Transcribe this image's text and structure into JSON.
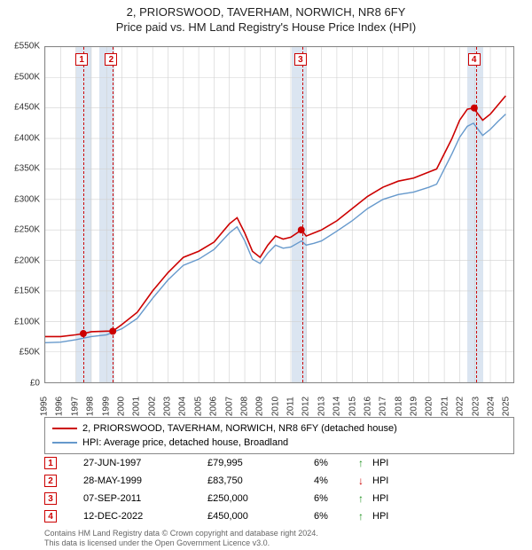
{
  "title_main": "2, PRIORSWOOD, TAVERHAM, NORWICH, NR8 6FY",
  "title_sub": "Price paid vs. HM Land Registry's House Price Index (HPI)",
  "title_fontsize": 13,
  "chart": {
    "xlim": [
      1995,
      2025.5
    ],
    "ylim": [
      0,
      550
    ],
    "xticks": [
      1995,
      1996,
      1997,
      1998,
      1999,
      2000,
      2001,
      2002,
      2003,
      2004,
      2005,
      2006,
      2007,
      2008,
      2009,
      2010,
      2011,
      2012,
      2013,
      2014,
      2015,
      2016,
      2017,
      2018,
      2019,
      2020,
      2021,
      2022,
      2023,
      2024,
      2025
    ],
    "yticks": [
      0,
      50,
      100,
      150,
      200,
      250,
      300,
      350,
      400,
      450,
      500,
      550
    ],
    "ytick_labels": [
      "£0",
      "£50K",
      "£100K",
      "£150K",
      "£200K",
      "£250K",
      "£300K",
      "£350K",
      "£400K",
      "£450K",
      "£500K",
      "£550K"
    ],
    "grid_color": "#d0d0d0",
    "border_color": "#888888",
    "background_color": "#ffffff",
    "axis_label_fontsize": 10,
    "axis_label_color": "#333333",
    "recession_bands": [
      {
        "start": 1997.0,
        "end": 1998.0
      },
      {
        "start": 1998.5,
        "end": 1999.5
      },
      {
        "start": 2011.0,
        "end": 2012.0
      },
      {
        "start": 2022.4,
        "end": 2023.4
      }
    ],
    "recession_color": "#dbe5f1",
    "series_property": {
      "color": "#cc0000",
      "width": 1.6,
      "points": [
        [
          1995.0,
          75
        ],
        [
          1996.0,
          75
        ],
        [
          1997.0,
          78
        ],
        [
          1997.5,
          80
        ],
        [
          1998.0,
          83
        ],
        [
          1999.0,
          84
        ],
        [
          1999.4,
          84
        ],
        [
          2000.0,
          95
        ],
        [
          2001.0,
          115
        ],
        [
          2002.0,
          150
        ],
        [
          2003.0,
          180
        ],
        [
          2004.0,
          205
        ],
        [
          2005.0,
          215
        ],
        [
          2006.0,
          230
        ],
        [
          2007.0,
          260
        ],
        [
          2007.5,
          270
        ],
        [
          2008.0,
          245
        ],
        [
          2008.5,
          215
        ],
        [
          2009.0,
          205
        ],
        [
          2009.5,
          225
        ],
        [
          2010.0,
          240
        ],
        [
          2010.5,
          235
        ],
        [
          2011.0,
          238
        ],
        [
          2011.7,
          250
        ],
        [
          2012.0,
          240
        ],
        [
          2012.5,
          245
        ],
        [
          2013.0,
          250
        ],
        [
          2014.0,
          265
        ],
        [
          2015.0,
          285
        ],
        [
          2016.0,
          305
        ],
        [
          2017.0,
          320
        ],
        [
          2018.0,
          330
        ],
        [
          2019.0,
          335
        ],
        [
          2020.0,
          345
        ],
        [
          2020.5,
          350
        ],
        [
          2021.0,
          375
        ],
        [
          2021.5,
          400
        ],
        [
          2022.0,
          430
        ],
        [
          2022.5,
          448
        ],
        [
          2022.9,
          450
        ],
        [
          2023.2,
          440
        ],
        [
          2023.5,
          430
        ],
        [
          2024.0,
          440
        ],
        [
          2024.5,
          455
        ],
        [
          2025.0,
          470
        ]
      ]
    },
    "series_hpi": {
      "color": "#6699cc",
      "width": 1.4,
      "points": [
        [
          1995.0,
          65
        ],
        [
          1996.0,
          66
        ],
        [
          1997.0,
          70
        ],
        [
          1998.0,
          75
        ],
        [
          1999.0,
          78
        ],
        [
          2000.0,
          88
        ],
        [
          2001.0,
          105
        ],
        [
          2002.0,
          138
        ],
        [
          2003.0,
          168
        ],
        [
          2004.0,
          192
        ],
        [
          2005.0,
          202
        ],
        [
          2006.0,
          218
        ],
        [
          2007.0,
          245
        ],
        [
          2007.5,
          255
        ],
        [
          2008.0,
          232
        ],
        [
          2008.5,
          202
        ],
        [
          2009.0,
          195
        ],
        [
          2009.5,
          212
        ],
        [
          2010.0,
          225
        ],
        [
          2010.5,
          220
        ],
        [
          2011.0,
          222
        ],
        [
          2011.7,
          232
        ],
        [
          2012.0,
          225
        ],
        [
          2012.5,
          228
        ],
        [
          2013.0,
          232
        ],
        [
          2014.0,
          248
        ],
        [
          2015.0,
          265
        ],
        [
          2016.0,
          285
        ],
        [
          2017.0,
          300
        ],
        [
          2018.0,
          308
        ],
        [
          2019.0,
          312
        ],
        [
          2020.0,
          320
        ],
        [
          2020.5,
          325
        ],
        [
          2021.0,
          350
        ],
        [
          2021.5,
          375
        ],
        [
          2022.0,
          402
        ],
        [
          2022.5,
          420
        ],
        [
          2022.9,
          425
        ],
        [
          2023.2,
          415
        ],
        [
          2023.5,
          405
        ],
        [
          2024.0,
          415
        ],
        [
          2024.5,
          428
        ],
        [
          2025.0,
          440
        ]
      ]
    },
    "sale_markers": [
      {
        "n": "1",
        "year": 1997.48,
        "price": 79.995,
        "color": "#cc0000"
      },
      {
        "n": "2",
        "year": 1999.4,
        "price": 83.75,
        "color": "#cc0000"
      },
      {
        "n": "3",
        "year": 2011.68,
        "price": 250.0,
        "color": "#cc0000"
      },
      {
        "n": "4",
        "year": 2022.95,
        "price": 450.0,
        "color": "#cc0000"
      }
    ],
    "marker_line_color": "#cc0000",
    "marker_dot_radius": 4
  },
  "legend": {
    "items": [
      {
        "color": "#cc0000",
        "label": "2, PRIORSWOOD, TAVERHAM, NORWICH, NR8 6FY (detached house)"
      },
      {
        "color": "#6699cc",
        "label": "HPI: Average price, detached house, Broadland"
      }
    ],
    "fontsize": 11,
    "border_color": "#888888"
  },
  "trades": [
    {
      "n": "1",
      "date": "27-JUN-1997",
      "price": "£79,995",
      "pct": "6%",
      "dir": "↑",
      "dir_color": "#1a8f1a",
      "note": "HPI",
      "box_color": "#cc0000"
    },
    {
      "n": "2",
      "date": "28-MAY-1999",
      "price": "£83,750",
      "pct": "4%",
      "dir": "↓",
      "dir_color": "#cc0000",
      "note": "HPI",
      "box_color": "#cc0000"
    },
    {
      "n": "3",
      "date": "07-SEP-2011",
      "price": "£250,000",
      "pct": "6%",
      "dir": "↑",
      "dir_color": "#1a8f1a",
      "note": "HPI",
      "box_color": "#cc0000"
    },
    {
      "n": "4",
      "date": "12-DEC-2022",
      "price": "£450,000",
      "pct": "6%",
      "dir": "↑",
      "dir_color": "#1a8f1a",
      "note": "HPI",
      "box_color": "#cc0000"
    }
  ],
  "footer_line1": "Contains HM Land Registry data © Crown copyright and database right 2024.",
  "footer_line2": "This data is licensed under the Open Government Licence v3.0.",
  "footer_fontsize": 9,
  "footer_color": "#666666"
}
